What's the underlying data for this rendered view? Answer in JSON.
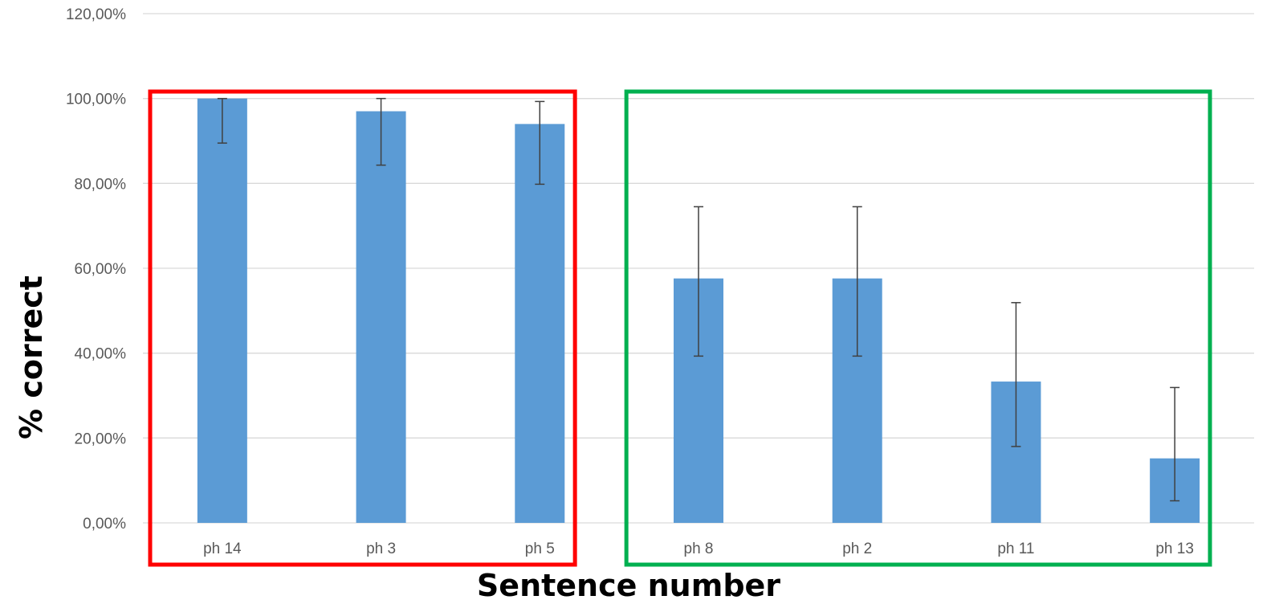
{
  "chart_data": {
    "type": "bar",
    "categories": [
      "ph 14",
      "ph 3",
      "ph 5",
      "ph 8",
      "ph 2",
      "ph 11",
      "ph 13"
    ],
    "values": [
      100.0,
      97.0,
      94.0,
      57.6,
      57.6,
      33.3,
      15.2
    ],
    "error_bars": {
      "upper": [
        100.0,
        100.0,
        99.3,
        74.5,
        74.5,
        51.9,
        31.9
      ],
      "lower": [
        89.5,
        84.3,
        79.8,
        39.3,
        39.3,
        18.0,
        5.2
      ]
    },
    "xlabel": "Sentence number",
    "ylabel": "% correct",
    "ylim": [
      0,
      120
    ],
    "yticks": [
      "0,00%",
      "20,00%",
      "40,00%",
      "60,00%",
      "80,00%",
      "100,00%",
      "120,00%"
    ],
    "grid": true,
    "legend": "none",
    "colors": {
      "bar": "#5b9bd5",
      "grid": "#d9d9d9",
      "error_bar": "#404040"
    },
    "groups": [
      {
        "categories": [
          "ph 14",
          "ph 3",
          "ph 5"
        ],
        "box_color": "#ff0000"
      },
      {
        "categories": [
          "ph 8",
          "ph 2",
          "ph 11",
          "ph 13"
        ],
        "box_color": "#00b050"
      }
    ]
  }
}
